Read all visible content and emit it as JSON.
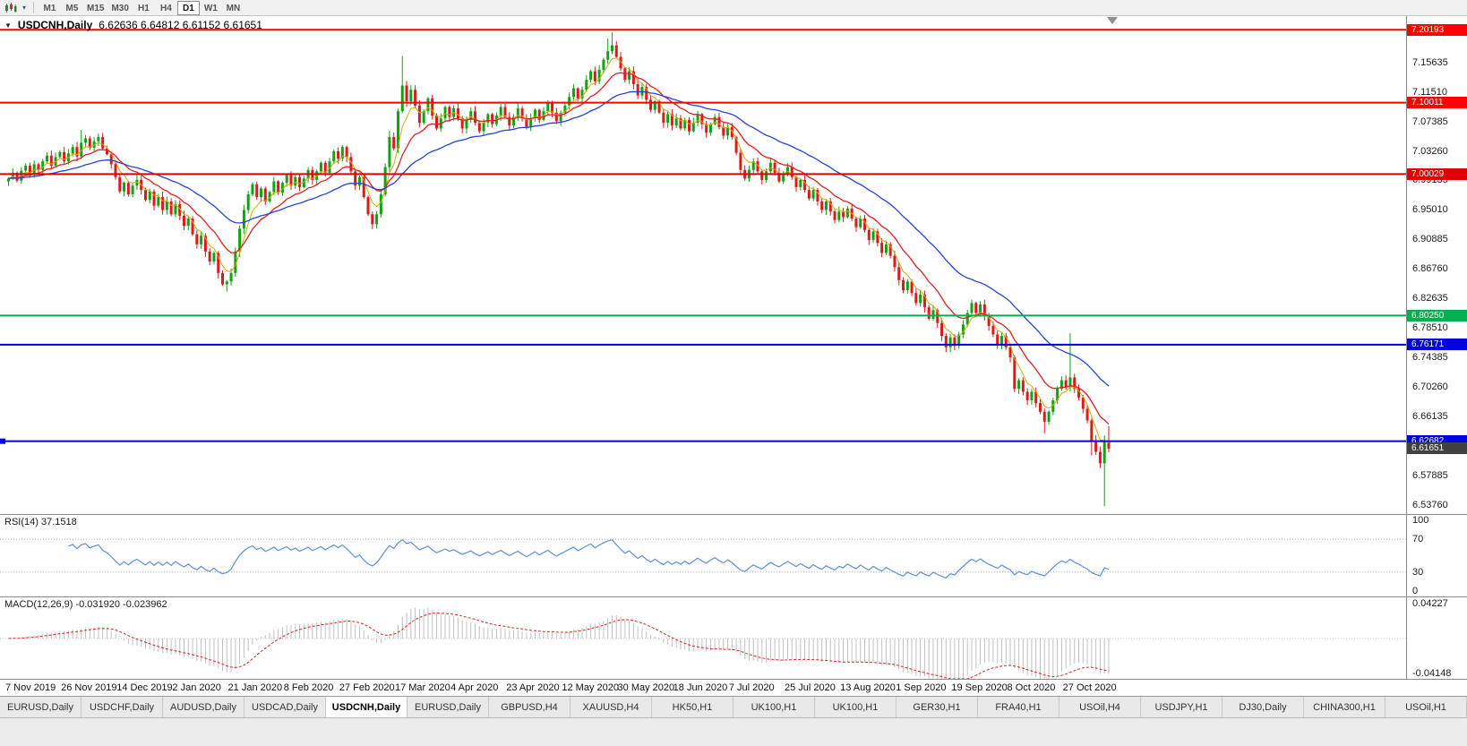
{
  "toolbar": {
    "chart_type_icon": "candlestick-chart-icon",
    "dropdown_caret": "▾",
    "timeframes": [
      "M1",
      "M5",
      "M15",
      "M30",
      "H1",
      "H4",
      "D1",
      "W1",
      "MN"
    ],
    "active_timeframe": "D1"
  },
  "header": {
    "arrow": "▼",
    "symbol": "USDCNH,Daily",
    "quote": "6.62636 6.64812 6.61152 6.61651"
  },
  "chart_data": {
    "type": "candlestick",
    "symbol": "USDCNH",
    "timeframe": "Daily",
    "price_range": {
      "min": 6.525,
      "max": 7.221
    },
    "first_open": 6.99,
    "closes": [
      6.994,
      7.002,
      6.991,
      7.005,
      7.012,
      7.0,
      7.014,
      7.006,
      7.018,
      7.026,
      7.012,
      7.024,
      7.031,
      7.018,
      7.029,
      7.038,
      7.025,
      7.044,
      7.05,
      7.037,
      7.046,
      7.052,
      7.036,
      7.028,
      7.014,
      6.996,
      6.976,
      6.988,
      6.972,
      6.984,
      6.992,
      6.978,
      6.964,
      6.976,
      6.956,
      6.968,
      6.95,
      6.962,
      6.944,
      6.958,
      6.942,
      6.928,
      6.938,
      6.916,
      6.902,
      6.914,
      6.892,
      6.878,
      6.89,
      6.862,
      6.846,
      6.85,
      6.862,
      6.892,
      6.924,
      6.95,
      6.972,
      6.986,
      6.968,
      6.98,
      6.962,
      6.975,
      6.99,
      6.974,
      6.988,
      6.999,
      6.984,
      6.996,
      6.982,
      6.994,
      7.006,
      6.992,
      7.004,
      7.016,
      7.002,
      7.018,
      7.032,
      7.022,
      7.038,
      7.024,
      7.004,
      6.984,
      6.996,
      6.968,
      6.944,
      6.93,
      6.944,
      6.972,
      7.01,
      7.052,
      7.036,
      7.088,
      7.124,
      7.102,
      7.118,
      7.096,
      7.072,
      7.088,
      7.106,
      7.082,
      7.064,
      7.078,
      7.094,
      7.08,
      7.092,
      7.078,
      7.064,
      7.076,
      7.088,
      7.072,
      7.06,
      7.072,
      7.084,
      7.07,
      7.082,
      7.094,
      7.08,
      7.068,
      7.08,
      7.092,
      7.078,
      7.066,
      7.078,
      7.09,
      7.076,
      7.088,
      7.1,
      7.086,
      7.074,
      7.086,
      7.096,
      7.108,
      7.12,
      7.106,
      7.118,
      7.132,
      7.144,
      7.13,
      7.146,
      7.16,
      7.172,
      7.18,
      7.164,
      7.148,
      7.132,
      7.144,
      7.126,
      7.11,
      7.122,
      7.104,
      7.09,
      7.102,
      7.086,
      7.072,
      7.084,
      7.068,
      7.078,
      7.064,
      7.076,
      7.06,
      7.072,
      7.084,
      7.07,
      7.058,
      7.07,
      7.08,
      7.066,
      7.054,
      7.066,
      7.052,
      7.03,
      7.006,
      6.994,
      7.006,
      7.018,
      7.004,
      6.992,
      7.004,
      7.016,
      7.002,
      6.99,
      7.0,
      7.01,
      6.996,
      6.982,
      6.992,
      6.978,
      6.966,
      6.978,
      6.962,
      6.95,
      6.962,
      6.948,
      6.936,
      6.948,
      6.94,
      6.952,
      6.938,
      6.926,
      6.938,
      6.922,
      6.908,
      6.92,
      6.904,
      6.89,
      6.902,
      6.886,
      6.87,
      6.852,
      6.838,
      6.85,
      6.834,
      6.82,
      6.832,
      6.814,
      6.798,
      6.81,
      6.792,
      6.774,
      6.758,
      6.772,
      6.76,
      6.776,
      6.79,
      6.806,
      6.82,
      6.806,
      6.818,
      6.802,
      6.788,
      6.776,
      6.762,
      6.774,
      6.758,
      6.744,
      6.7,
      6.712,
      6.696,
      6.684,
      6.696,
      6.68,
      6.668,
      6.654,
      6.668,
      6.684,
      6.7,
      6.712,
      6.702,
      6.716,
      6.7,
      6.688,
      6.672,
      6.656,
      6.628,
      6.612,
      6.596,
      6.627,
      6.6165
    ],
    "special_wicks": {
      "17": {
        "high": 7.062
      },
      "51": {
        "low": 6.836
      },
      "92": {
        "high": 7.165
      },
      "140": {
        "high": 7.19
      },
      "141": {
        "high": 7.198
      },
      "235": {
        "high": 6.747
      },
      "242": {
        "low": 6.638
      },
      "248": {
        "high": 6.778
      },
      "253": {
        "low": 6.607
      },
      "256": {
        "low": 6.536
      },
      "257": {
        "high": 6.648,
        "low": 6.6115
      }
    },
    "up_color": "#0fa312",
    "down_color": "#e01818",
    "moving_averages": [
      {
        "period": 5,
        "color": "#d9a60a",
        "width": 1
      },
      {
        "period": 13,
        "color": "#dd2222",
        "width": 1.3
      },
      {
        "period": 34,
        "color": "#2742d6",
        "width": 1.3
      }
    ],
    "h_lines": [
      {
        "price": 7.20193,
        "label": "7.20193",
        "color": "#ff0000",
        "width": 2
      },
      {
        "price": 7.10011,
        "label": "7.10011",
        "color": "#ff0000",
        "width": 2
      },
      {
        "price": 7.00029,
        "label": "7.00029",
        "color": "#e00000",
        "width": 2
      },
      {
        "price": 6.8025,
        "label": "6.80250",
        "color": "#00b050",
        "width": 2
      },
      {
        "price": 6.76171,
        "label": "6.76171",
        "color": "#0000e0",
        "width": 2
      },
      {
        "price": 6.62682,
        "label": "6.62682",
        "color": "#0000e0",
        "width": 2,
        "handle": true
      }
    ],
    "current_price": {
      "value": 6.61651,
      "label": "6.61651",
      "bg": "#404040"
    },
    "axis_ticks": [
      {
        "price": 7.15635,
        "label": "7.15635"
      },
      {
        "price": 7.1151,
        "label": "7.11510"
      },
      {
        "price": 7.07385,
        "label": "7.07385"
      },
      {
        "price": 7.0326,
        "label": "7.03260"
      },
      {
        "price": 6.99135,
        "label": "6.99135"
      },
      {
        "price": 6.9501,
        "label": "6.95010"
      },
      {
        "price": 6.90885,
        "label": "6.90885"
      },
      {
        "price": 6.8676,
        "label": "6.86760"
      },
      {
        "price": 6.82635,
        "label": "6.82635"
      },
      {
        "price": 6.7851,
        "label": "6.78510"
      },
      {
        "price": 6.74385,
        "label": "6.74385"
      },
      {
        "price": 6.7026,
        "label": "6.70260"
      },
      {
        "price": 6.66135,
        "label": "6.66135"
      },
      {
        "price": 6.57885,
        "label": "6.57885"
      },
      {
        "price": 6.5376,
        "label": "6.53760"
      }
    ],
    "rsi": {
      "label": "RSI(14) 37.1518",
      "period": 14,
      "color": "#5c8fdb",
      "levels": [
        70,
        30
      ],
      "axis": [
        {
          "v": 100,
          "label": "100"
        },
        {
          "v": 70,
          "label": "70"
        },
        {
          "v": 30,
          "label": "30"
        },
        {
          "v": 0,
          "label": "0"
        }
      ]
    },
    "macd": {
      "label": "MACD(12,26,9) -0.031920 -0.023962",
      "fast": 12,
      "slow": 26,
      "signal": 9,
      "hist_color": "#c0c0c0",
      "signal_color": "#dd2222",
      "axis_top": "0.04227",
      "axis_bottom": "-0.04148",
      "scale_top": 0.0423,
      "scale_bottom": -0.0415
    },
    "x_axis": {
      "bars_per_label": 13,
      "labels": [
        "7 Nov 2019",
        "26 Nov 2019",
        "14 Dec 2019",
        "2 Jan 2020",
        "21 Jan 2020",
        "8 Feb 2020",
        "27 Feb 2020",
        "17 Mar 2020",
        "4 Apr 2020",
        "23 Apr 2020",
        "12 May 2020",
        "30 May 2020",
        "18 Jun 2020",
        "7 Jul 2020",
        "25 Jul 2020",
        "13 Aug 2020",
        "1 Sep 2020",
        "19 Sep 2020",
        "8 Oct 2020",
        "27 Oct 2020"
      ]
    }
  },
  "tabs": {
    "active_index": 4,
    "items": [
      "EURUSD,Daily",
      "USDCHF,Daily",
      "AUDUSD,Daily",
      "USDCAD,Daily",
      "USDCNH,Daily",
      "EURUSD,Daily",
      "GBPUSD,H4",
      "XAUUSD,H4",
      "HK50,H1",
      "UK100,H1",
      "UK100,H1",
      "GER30,H1",
      "FRA40,H1",
      "USOil,H4",
      "USDJPY,H1",
      "DJ30,Daily",
      "CHINA300,H1",
      "USOil,H1"
    ]
  }
}
